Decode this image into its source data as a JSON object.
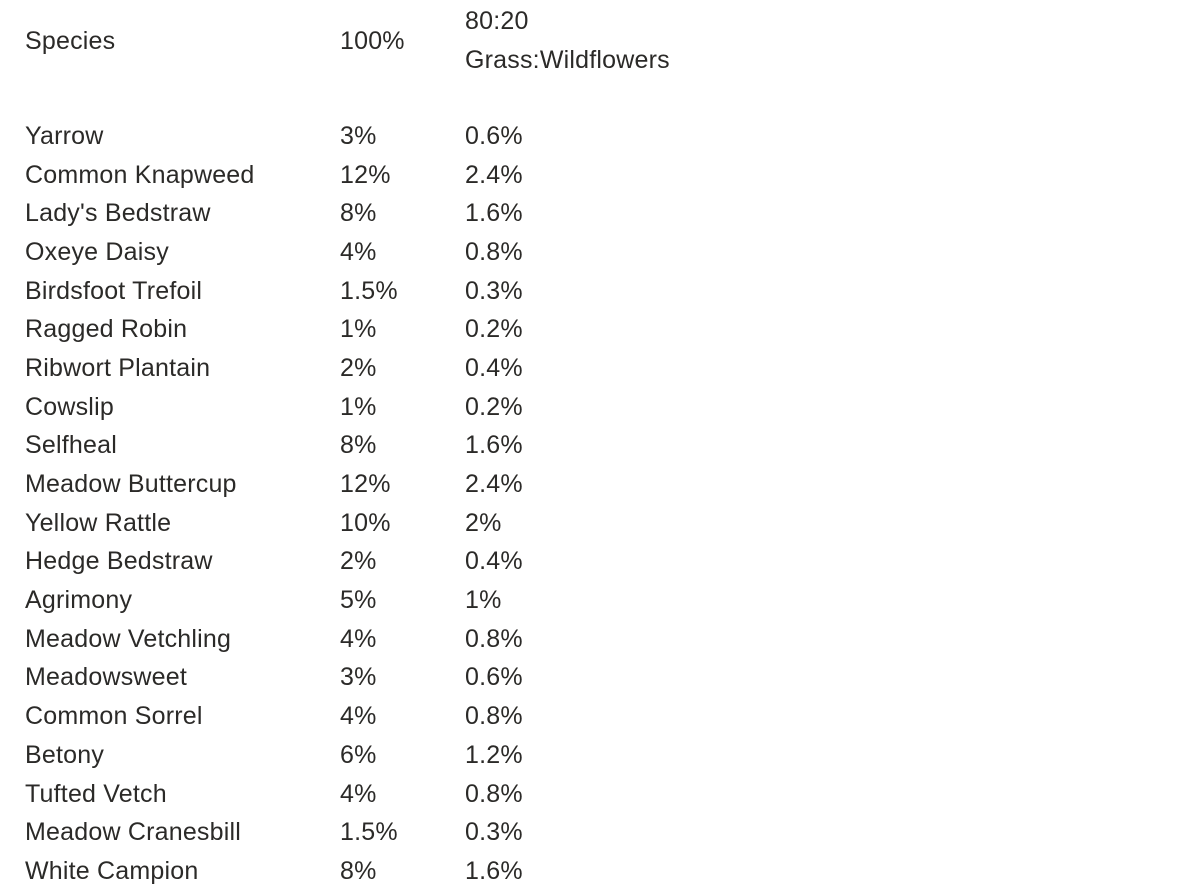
{
  "table": {
    "columns": [
      {
        "label": "Species"
      },
      {
        "label": "100%"
      },
      {
        "label_line1": "80:20",
        "label_line2": "Grass:Wildflowers"
      }
    ],
    "rows": [
      {
        "species": "Yarrow",
        "pct_100": "3%",
        "pct_mix": "0.6%"
      },
      {
        "species": "Common Knapweed",
        "pct_100": "12%",
        "pct_mix": "2.4%"
      },
      {
        "species": "Lady's Bedstraw",
        "pct_100": "8%",
        "pct_mix": "1.6%"
      },
      {
        "species": "Oxeye Daisy",
        "pct_100": "4%",
        "pct_mix": "0.8%"
      },
      {
        "species": "Birdsfoot Trefoil",
        "pct_100": "1.5%",
        "pct_mix": "0.3%"
      },
      {
        "species": "Ragged Robin",
        "pct_100": "1%",
        "pct_mix": "0.2%"
      },
      {
        "species": "Ribwort Plantain",
        "pct_100": "2%",
        "pct_mix": "0.4%"
      },
      {
        "species": "Cowslip",
        "pct_100": "1%",
        "pct_mix": "0.2%"
      },
      {
        "species": "Selfheal",
        "pct_100": "8%",
        "pct_mix": "1.6%"
      },
      {
        "species": "Meadow Buttercup",
        "pct_100": "12%",
        "pct_mix": "2.4%"
      },
      {
        "species": "Yellow Rattle",
        "pct_100": "10%",
        "pct_mix": "2%"
      },
      {
        "species": "Hedge Bedstraw",
        "pct_100": "2%",
        "pct_mix": "0.4%"
      },
      {
        "species": "Agrimony",
        "pct_100": "5%",
        "pct_mix": "1%"
      },
      {
        "species": "Meadow Vetchling",
        "pct_100": "4%",
        "pct_mix": "0.8%"
      },
      {
        "species": "Meadowsweet",
        "pct_100": "3%",
        "pct_mix": "0.6%"
      },
      {
        "species": "Common Sorrel",
        "pct_100": "4%",
        "pct_mix": "0.8%"
      },
      {
        "species": "Betony",
        "pct_100": "6%",
        "pct_mix": "1.2%"
      },
      {
        "species": "Tufted Vetch",
        "pct_100": "4%",
        "pct_mix": "0.8%"
      },
      {
        "species": "Meadow Cranesbill",
        "pct_100": "1.5%",
        "pct_mix": "0.3%"
      },
      {
        "species": "White Campion",
        "pct_100": "8%",
        "pct_mix": "1.6%"
      }
    ]
  },
  "colors": {
    "text": "#2b2a28",
    "background": "#ffffff"
  }
}
